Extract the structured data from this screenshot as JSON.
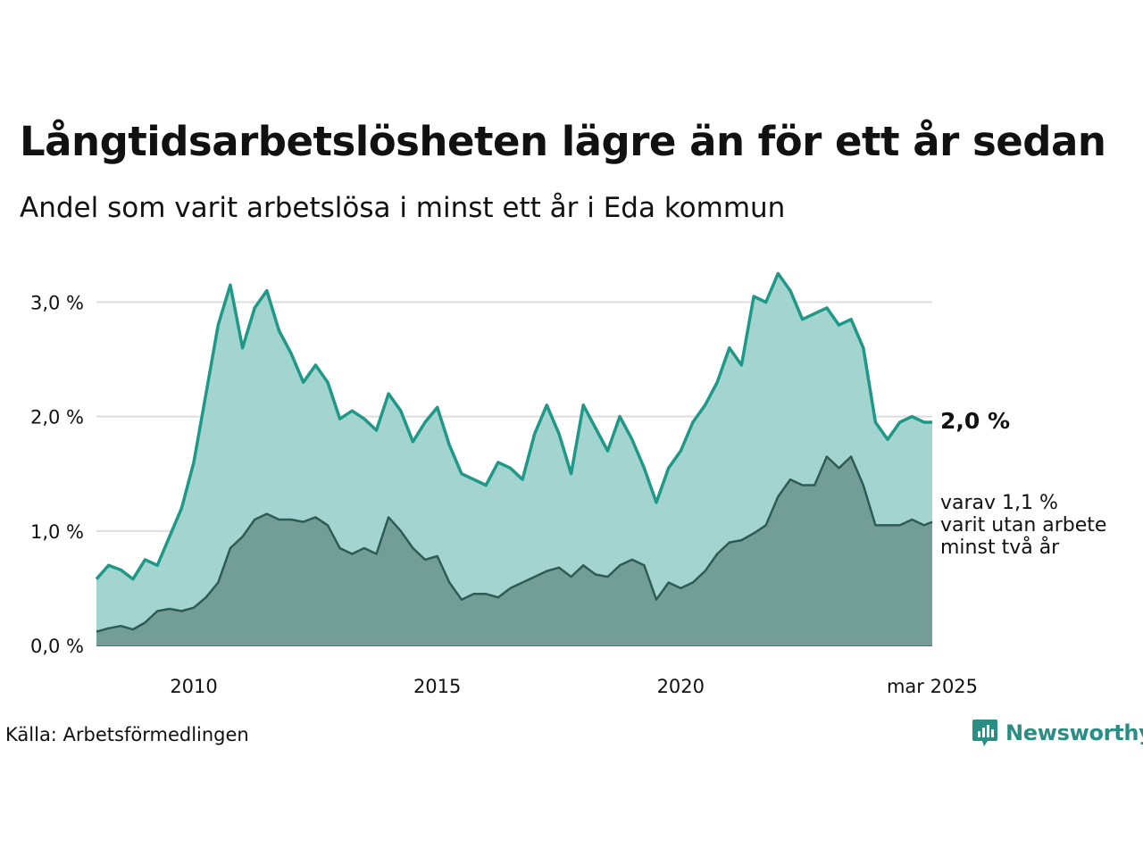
{
  "title": "Långtidsarbetslösheten lägre än för ett år sedan",
  "subtitle": "Andel som varit arbetslösa i minst ett år i Eda kommun",
  "source": "Källa: Arbetsförmedlingen",
  "brand": "Newsworthy",
  "colors": {
    "series1_line": "#1f9887",
    "series1_fill": "#a3d4cf",
    "series2_line": "#2f5b55",
    "series2_fill": "#739e98",
    "brand": "#2a8e84"
  },
  "chart_data": {
    "type": "area",
    "title": "Långtidsarbetslösheten lägre än för ett år sedan",
    "subtitle": "Andel som varit arbetslösa i minst ett år i Eda kommun",
    "xlabel": "",
    "ylabel": "",
    "x_start": "2008-01",
    "x_end": "2025-03",
    "ylim": [
      0,
      3.3
    ],
    "y_ticks": [
      0,
      1,
      2,
      3
    ],
    "y_tick_labels": [
      "0,0 %",
      "1,0 %",
      "2,0 %",
      "3,0 %"
    ],
    "x_ticks": [
      2010,
      2015,
      2020
    ],
    "x_tick_labels": [
      "2010",
      "2015",
      "2020",
      "mar 2025"
    ],
    "grid": "horizontal",
    "series": [
      {
        "role": "minst ett år",
        "end_label": "2,0 %",
        "points": [
          [
            "2008-01",
            0.58
          ],
          [
            "2008-04",
            0.7
          ],
          [
            "2008-07",
            0.66
          ],
          [
            "2008-10",
            0.58
          ],
          [
            "2009-01",
            0.75
          ],
          [
            "2009-04",
            0.7
          ],
          [
            "2009-07",
            0.95
          ],
          [
            "2009-10",
            1.2
          ],
          [
            "2010-01",
            1.6
          ],
          [
            "2010-04",
            2.2
          ],
          [
            "2010-07",
            2.8
          ],
          [
            "2010-10",
            3.15
          ],
          [
            "2011-01",
            2.6
          ],
          [
            "2011-04",
            2.95
          ],
          [
            "2011-07",
            3.1
          ],
          [
            "2011-10",
            2.75
          ],
          [
            "2012-01",
            2.55
          ],
          [
            "2012-04",
            2.3
          ],
          [
            "2012-07",
            2.45
          ],
          [
            "2012-10",
            2.3
          ],
          [
            "2013-01",
            1.98
          ],
          [
            "2013-04",
            2.05
          ],
          [
            "2013-07",
            1.98
          ],
          [
            "2013-10",
            1.88
          ],
          [
            "2014-01",
            2.2
          ],
          [
            "2014-04",
            2.05
          ],
          [
            "2014-07",
            1.78
          ],
          [
            "2014-10",
            1.95
          ],
          [
            "2015-01",
            2.08
          ],
          [
            "2015-04",
            1.75
          ],
          [
            "2015-07",
            1.5
          ],
          [
            "2015-10",
            1.45
          ],
          [
            "2016-01",
            1.4
          ],
          [
            "2016-04",
            1.6
          ],
          [
            "2016-07",
            1.55
          ],
          [
            "2016-10",
            1.45
          ],
          [
            "2017-01",
            1.85
          ],
          [
            "2017-04",
            2.1
          ],
          [
            "2017-07",
            1.85
          ],
          [
            "2017-10",
            1.5
          ],
          [
            "2018-01",
            2.1
          ],
          [
            "2018-04",
            1.9
          ],
          [
            "2018-07",
            1.7
          ],
          [
            "2018-10",
            2.0
          ],
          [
            "2019-01",
            1.8
          ],
          [
            "2019-04",
            1.55
          ],
          [
            "2019-07",
            1.25
          ],
          [
            "2019-10",
            1.55
          ],
          [
            "2020-01",
            1.7
          ],
          [
            "2020-04",
            1.95
          ],
          [
            "2020-07",
            2.1
          ],
          [
            "2020-10",
            2.3
          ],
          [
            "2021-01",
            2.6
          ],
          [
            "2021-04",
            2.45
          ],
          [
            "2021-07",
            3.05
          ],
          [
            "2021-10",
            3.0
          ],
          [
            "2022-01",
            3.25
          ],
          [
            "2022-04",
            3.1
          ],
          [
            "2022-07",
            2.85
          ],
          [
            "2022-10",
            2.9
          ],
          [
            "2023-01",
            2.95
          ],
          [
            "2023-04",
            2.8
          ],
          [
            "2023-07",
            2.85
          ],
          [
            "2023-10",
            2.6
          ],
          [
            "2024-01",
            1.95
          ],
          [
            "2024-04",
            1.8
          ],
          [
            "2024-07",
            1.95
          ],
          [
            "2024-10",
            2.0
          ],
          [
            "2025-01",
            1.95
          ],
          [
            "2025-03",
            1.95
          ]
        ]
      },
      {
        "role": "minst två år",
        "end_label": "varav 1,1 %\nvarit utan arbete\nminst två år",
        "points": [
          [
            "2008-01",
            0.12
          ],
          [
            "2008-04",
            0.15
          ],
          [
            "2008-07",
            0.17
          ],
          [
            "2008-10",
            0.14
          ],
          [
            "2009-01",
            0.2
          ],
          [
            "2009-04",
            0.3
          ],
          [
            "2009-07",
            0.32
          ],
          [
            "2009-10",
            0.3
          ],
          [
            "2010-01",
            0.33
          ],
          [
            "2010-04",
            0.42
          ],
          [
            "2010-07",
            0.55
          ],
          [
            "2010-10",
            0.85
          ],
          [
            "2011-01",
            0.95
          ],
          [
            "2011-04",
            1.1
          ],
          [
            "2011-07",
            1.15
          ],
          [
            "2011-10",
            1.1
          ],
          [
            "2012-01",
            1.1
          ],
          [
            "2012-04",
            1.08
          ],
          [
            "2012-07",
            1.12
          ],
          [
            "2012-10",
            1.05
          ],
          [
            "2013-01",
            0.85
          ],
          [
            "2013-04",
            0.8
          ],
          [
            "2013-07",
            0.85
          ],
          [
            "2013-10",
            0.8
          ],
          [
            "2014-01",
            1.12
          ],
          [
            "2014-04",
            1.0
          ],
          [
            "2014-07",
            0.85
          ],
          [
            "2014-10",
            0.75
          ],
          [
            "2015-01",
            0.78
          ],
          [
            "2015-04",
            0.55
          ],
          [
            "2015-07",
            0.4
          ],
          [
            "2015-10",
            0.45
          ],
          [
            "2016-01",
            0.45
          ],
          [
            "2016-04",
            0.42
          ],
          [
            "2016-07",
            0.5
          ],
          [
            "2016-10",
            0.55
          ],
          [
            "2017-01",
            0.6
          ],
          [
            "2017-04",
            0.65
          ],
          [
            "2017-07",
            0.68
          ],
          [
            "2017-10",
            0.6
          ],
          [
            "2018-01",
            0.7
          ],
          [
            "2018-04",
            0.62
          ],
          [
            "2018-07",
            0.6
          ],
          [
            "2018-10",
            0.7
          ],
          [
            "2019-01",
            0.75
          ],
          [
            "2019-04",
            0.7
          ],
          [
            "2019-07",
            0.4
          ],
          [
            "2019-10",
            0.55
          ],
          [
            "2020-01",
            0.5
          ],
          [
            "2020-04",
            0.55
          ],
          [
            "2020-07",
            0.65
          ],
          [
            "2020-10",
            0.8
          ],
          [
            "2021-01",
            0.9
          ],
          [
            "2021-04",
            0.92
          ],
          [
            "2021-07",
            0.98
          ],
          [
            "2021-10",
            1.05
          ],
          [
            "2022-01",
            1.3
          ],
          [
            "2022-04",
            1.45
          ],
          [
            "2022-07",
            1.4
          ],
          [
            "2022-10",
            1.4
          ],
          [
            "2023-01",
            1.65
          ],
          [
            "2023-04",
            1.55
          ],
          [
            "2023-07",
            1.65
          ],
          [
            "2023-10",
            1.4
          ],
          [
            "2024-01",
            1.05
          ],
          [
            "2024-04",
            1.05
          ],
          [
            "2024-07",
            1.05
          ],
          [
            "2024-10",
            1.1
          ],
          [
            "2025-01",
            1.05
          ],
          [
            "2025-03",
            1.08
          ]
        ]
      }
    ]
  }
}
